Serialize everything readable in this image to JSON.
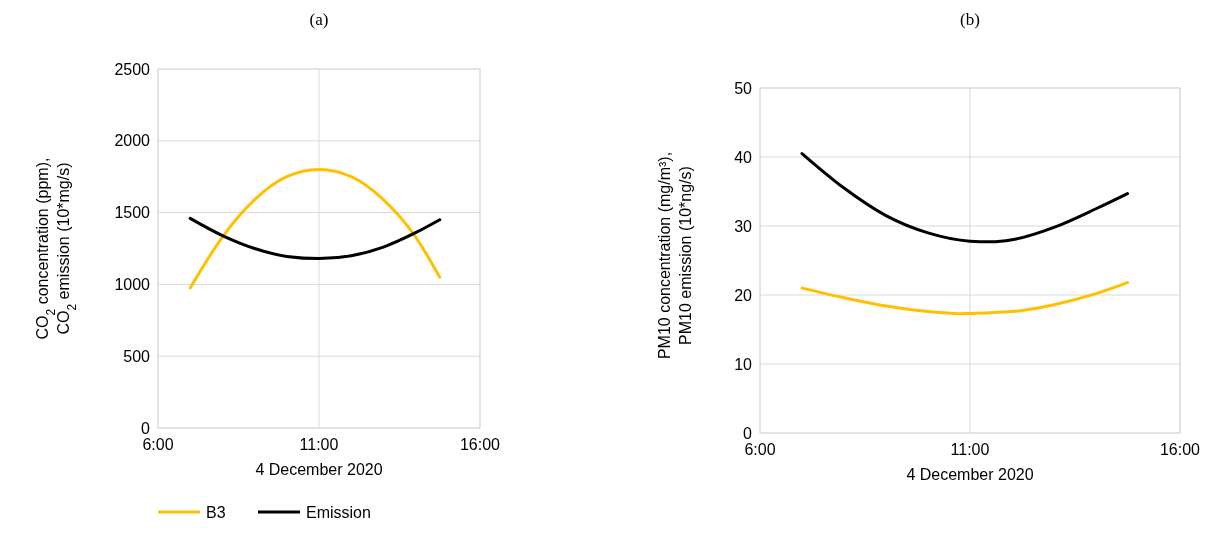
{
  "chart_data": [
    {
      "type": "line",
      "title": "(a)",
      "xlabel": "4 December 2020",
      "ylabel": "CO$_{2}$ concentration (ppm), CO$_{2}$ emission (10*mg/s)",
      "xlim": [
        6,
        16
      ],
      "xticks": [
        {
          "value": 6,
          "label": "6:00"
        },
        {
          "value": 11,
          "label": "11:00"
        },
        {
          "value": 16,
          "label": "16:00"
        }
      ],
      "ylim": [
        0,
        2500
      ],
      "yticks": [
        0,
        500,
        1000,
        1500,
        2000,
        2500
      ],
      "grid": true,
      "legend": "bottom",
      "marker": "none",
      "series": [
        {
          "name": "B3",
          "color": "#ffc000",
          "x": [
            7,
            8,
            9,
            10,
            11,
            12,
            13,
            14,
            14.75
          ],
          "values": [
            975,
            1330,
            1590,
            1750,
            1800,
            1750,
            1590,
            1330,
            1050
          ]
        },
        {
          "name": "Emission",
          "color": "#000000",
          "x": [
            7,
            8,
            9,
            10,
            11,
            12,
            13,
            14,
            14.75
          ],
          "values": [
            1460,
            1340,
            1250,
            1195,
            1180,
            1200,
            1260,
            1360,
            1450
          ]
        }
      ]
    },
    {
      "type": "line",
      "title": "(b)",
      "xlabel": "4 December 2020",
      "ylabel": "PM10 concentration  (mg/m³), PM10 emission (10*ng/s)",
      "xlim": [
        6,
        16
      ],
      "xticks": [
        {
          "value": 6,
          "label": "6:00"
        },
        {
          "value": 11,
          "label": "11:00"
        },
        {
          "value": 16,
          "label": "16:00"
        }
      ],
      "ylim": [
        0,
        50
      ],
      "yticks": [
        0,
        10,
        20,
        30,
        40,
        50
      ],
      "grid": true,
      "marker": "none",
      "series": [
        {
          "color": "#ffc000",
          "x": [
            7,
            8,
            9,
            10,
            10.75,
            12,
            13,
            14,
            14.75
          ],
          "values": [
            21,
            19.6,
            18.4,
            17.6,
            17.3,
            17.6,
            18.6,
            20.2,
            21.8
          ]
        },
        {
          "color": "#000000",
          "x": [
            7,
            8,
            9,
            10,
            11,
            11.5,
            12,
            13,
            14,
            14.75
          ],
          "values": [
            40.5,
            35.5,
            31.5,
            29,
            27.8,
            27.7,
            28,
            29.8,
            32.5,
            34.7
          ]
        }
      ]
    }
  ]
}
